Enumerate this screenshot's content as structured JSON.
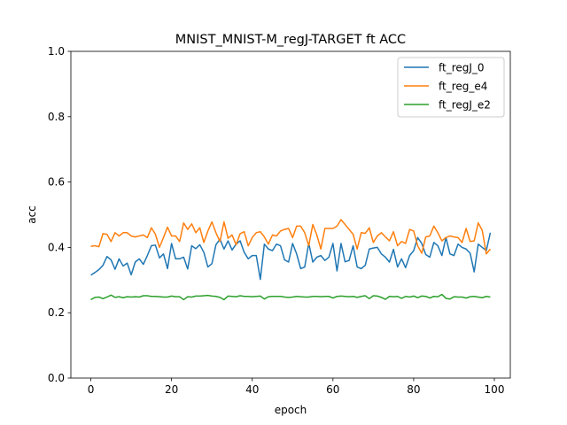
{
  "chart_data": {
    "type": "line",
    "title": "MNIST_MNIST-M_regJ-TARGET ft ACC",
    "xlabel": "epoch",
    "ylabel": "acc",
    "xlim": [
      -4.95,
      103.95
    ],
    "ylim": [
      0.0,
      1.0
    ],
    "xticks": [
      0,
      20,
      40,
      60,
      80,
      100
    ],
    "yticks": [
      0.0,
      0.2,
      0.4,
      0.6,
      0.8,
      1.0
    ],
    "xtick_labels": [
      "0",
      "20",
      "40",
      "60",
      "80",
      "100"
    ],
    "ytick_labels": [
      "0.0",
      "0.2",
      "0.4",
      "0.6",
      "0.8",
      "1.0"
    ],
    "grid": false,
    "legend_position": "top-right",
    "x": [
      0,
      1,
      2,
      3,
      4,
      5,
      6,
      7,
      8,
      9,
      10,
      11,
      12,
      13,
      14,
      15,
      16,
      17,
      18,
      19,
      20,
      21,
      22,
      23,
      24,
      25,
      26,
      27,
      28,
      29,
      30,
      31,
      32,
      33,
      34,
      35,
      36,
      37,
      38,
      39,
      40,
      41,
      42,
      43,
      44,
      45,
      46,
      47,
      48,
      49,
      50,
      51,
      52,
      53,
      54,
      55,
      56,
      57,
      58,
      59,
      60,
      61,
      62,
      63,
      64,
      65,
      66,
      67,
      68,
      69,
      70,
      71,
      72,
      73,
      74,
      75,
      76,
      77,
      78,
      79,
      80,
      81,
      82,
      83,
      84,
      85,
      86,
      87,
      88,
      89,
      90,
      91,
      92,
      93,
      94,
      95,
      96,
      97,
      98,
      99
    ],
    "series": [
      {
        "name": "ft_regJ_0",
        "color": "#1f77b4",
        "values": [
          0.315,
          0.323,
          0.332,
          0.345,
          0.372,
          0.362,
          0.333,
          0.365,
          0.343,
          0.352,
          0.316,
          0.355,
          0.365,
          0.348,
          0.375,
          0.405,
          0.407,
          0.368,
          0.38,
          0.335,
          0.412,
          0.365,
          0.365,
          0.37,
          0.334,
          0.405,
          0.396,
          0.408,
          0.385,
          0.34,
          0.35,
          0.408,
          0.425,
          0.395,
          0.42,
          0.392,
          0.41,
          0.42,
          0.385,
          0.365,
          0.375,
          0.375,
          0.302,
          0.41,
          0.395,
          0.39,
          0.41,
          0.405,
          0.362,
          0.355,
          0.412,
          0.38,
          0.335,
          0.34,
          0.413,
          0.355,
          0.37,
          0.375,
          0.36,
          0.37,
          0.412,
          0.328,
          0.412,
          0.356,
          0.36,
          0.405,
          0.34,
          0.335,
          0.345,
          0.395,
          0.398,
          0.4,
          0.38,
          0.37,
          0.355,
          0.394,
          0.34,
          0.365,
          0.338,
          0.375,
          0.39,
          0.43,
          0.412,
          0.378,
          0.37,
          0.415,
          0.405,
          0.375,
          0.43,
          0.38,
          0.375,
          0.41,
          0.4,
          0.395,
          0.382,
          0.325,
          0.41,
          0.4,
          0.39,
          0.445
        ]
      },
      {
        "name": "ft_reg_e4",
        "color": "#ff7f0e",
        "values": [
          0.403,
          0.405,
          0.402,
          0.442,
          0.44,
          0.418,
          0.445,
          0.435,
          0.445,
          0.445,
          0.435,
          0.432,
          0.435,
          0.438,
          0.43,
          0.46,
          0.44,
          0.4,
          0.43,
          0.462,
          0.435,
          0.435,
          0.418,
          0.475,
          0.455,
          0.472,
          0.445,
          0.46,
          0.415,
          0.45,
          0.478,
          0.445,
          0.418,
          0.478,
          0.428,
          0.438,
          0.408,
          0.442,
          0.448,
          0.405,
          0.43,
          0.445,
          0.448,
          0.432,
          0.41,
          0.438,
          0.435,
          0.45,
          0.455,
          0.458,
          0.43,
          0.465,
          0.465,
          0.445,
          0.405,
          0.47,
          0.438,
          0.395,
          0.458,
          0.458,
          0.458,
          0.465,
          0.485,
          0.47,
          0.455,
          0.44,
          0.395,
          0.445,
          0.443,
          0.46,
          0.415,
          0.435,
          0.445,
          0.432,
          0.42,
          0.448,
          0.405,
          0.418,
          0.412,
          0.455,
          0.45,
          0.405,
          0.382,
          0.432,
          0.435,
          0.465,
          0.445,
          0.42,
          0.43,
          0.435,
          0.432,
          0.43,
          0.415,
          0.458,
          0.418,
          0.42,
          0.475,
          0.452,
          0.38,
          0.395
        ]
      },
      {
        "name": "ft_regJ_e2",
        "color": "#2ca02c",
        "values": [
          0.24,
          0.247,
          0.248,
          0.243,
          0.248,
          0.254,
          0.247,
          0.249,
          0.246,
          0.249,
          0.248,
          0.249,
          0.248,
          0.252,
          0.252,
          0.25,
          0.25,
          0.249,
          0.248,
          0.248,
          0.251,
          0.249,
          0.249,
          0.24,
          0.249,
          0.248,
          0.251,
          0.251,
          0.252,
          0.253,
          0.251,
          0.25,
          0.247,
          0.24,
          0.251,
          0.25,
          0.249,
          0.252,
          0.25,
          0.25,
          0.249,
          0.25,
          0.251,
          0.242,
          0.249,
          0.25,
          0.25,
          0.25,
          0.248,
          0.247,
          0.248,
          0.25,
          0.249,
          0.248,
          0.248,
          0.25,
          0.25,
          0.249,
          0.25,
          0.25,
          0.245,
          0.25,
          0.251,
          0.25,
          0.249,
          0.25,
          0.247,
          0.25,
          0.252,
          0.243,
          0.252,
          0.251,
          0.247,
          0.241,
          0.25,
          0.249,
          0.25,
          0.244,
          0.25,
          0.248,
          0.251,
          0.246,
          0.251,
          0.25,
          0.245,
          0.25,
          0.249,
          0.256,
          0.244,
          0.242,
          0.249,
          0.248,
          0.248,
          0.245,
          0.249,
          0.25,
          0.248,
          0.246,
          0.25,
          0.248
        ]
      }
    ]
  }
}
